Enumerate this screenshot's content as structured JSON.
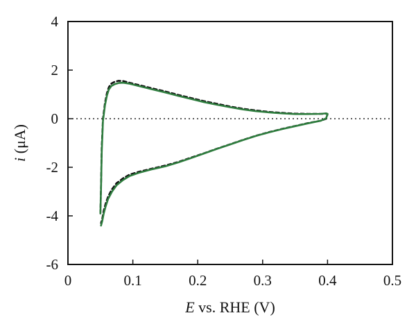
{
  "chart_data": {
    "type": "line",
    "title": "",
    "xlabel": {
      "italic": "E",
      "rest": " vs. RHE (V)"
    },
    "ylabel": {
      "italic": "i",
      "rest": " (μA)"
    },
    "xlim": [
      0,
      0.5
    ],
    "ylim": [
      -6,
      4
    ],
    "xticks": [
      0,
      0.1,
      0.2,
      0.3,
      0.4,
      0.5
    ],
    "xtick_labels": [
      "0",
      "0.1",
      "0.2",
      "0.3",
      "0.4",
      "0.5"
    ],
    "yticks": [
      -6,
      -4,
      -2,
      0,
      2,
      4
    ],
    "ytick_labels": [
      "-6",
      "-4",
      "-2",
      "0",
      "2",
      "4"
    ],
    "grid": false,
    "reference_line": {
      "y": 0,
      "style": "dotted"
    },
    "series": [
      {
        "style": "dashed",
        "color": "#111111",
        "x": [
          0.05,
          0.051,
          0.052,
          0.054,
          0.057,
          0.06,
          0.063,
          0.067,
          0.072,
          0.078,
          0.085,
          0.095,
          0.11,
          0.13,
          0.15,
          0.17,
          0.19,
          0.21,
          0.23,
          0.25,
          0.27,
          0.29,
          0.31,
          0.33,
          0.35,
          0.37,
          0.39,
          0.398,
          0.4,
          0.398,
          0.39,
          0.37,
          0.35,
          0.33,
          0.31,
          0.29,
          0.27,
          0.25,
          0.23,
          0.21,
          0.19,
          0.17,
          0.15,
          0.13,
          0.11,
          0.095,
          0.085,
          0.075,
          0.068,
          0.062,
          0.058,
          0.055,
          0.053,
          0.051
        ],
        "y": [
          -3.9,
          -2.8,
          -1.2,
          0.0,
          0.65,
          1.05,
          1.3,
          1.45,
          1.52,
          1.56,
          1.55,
          1.48,
          1.38,
          1.25,
          1.12,
          0.98,
          0.85,
          0.72,
          0.61,
          0.5,
          0.41,
          0.34,
          0.28,
          0.24,
          0.21,
          0.2,
          0.2,
          0.21,
          0.18,
          0.0,
          -0.08,
          -0.18,
          -0.3,
          -0.42,
          -0.55,
          -0.7,
          -0.87,
          -1.05,
          -1.23,
          -1.42,
          -1.6,
          -1.78,
          -1.93,
          -2.05,
          -2.18,
          -2.3,
          -2.45,
          -2.65,
          -2.9,
          -3.2,
          -3.5,
          -3.8,
          -4.1,
          -4.3
        ]
      },
      {
        "style": "solid",
        "color": "#2e7d3e",
        "x": [
          0.05,
          0.051,
          0.052,
          0.054,
          0.057,
          0.06,
          0.063,
          0.067,
          0.072,
          0.078,
          0.085,
          0.095,
          0.11,
          0.13,
          0.15,
          0.17,
          0.19,
          0.21,
          0.23,
          0.25,
          0.27,
          0.29,
          0.31,
          0.33,
          0.35,
          0.37,
          0.39,
          0.398,
          0.4,
          0.398,
          0.39,
          0.37,
          0.35,
          0.33,
          0.31,
          0.29,
          0.27,
          0.25,
          0.23,
          0.21,
          0.19,
          0.17,
          0.15,
          0.13,
          0.11,
          0.095,
          0.085,
          0.075,
          0.068,
          0.062,
          0.058,
          0.055,
          0.053,
          0.051
        ],
        "y": [
          -3.9,
          -2.9,
          -1.4,
          -0.1,
          0.55,
          0.95,
          1.2,
          1.35,
          1.42,
          1.47,
          1.48,
          1.44,
          1.34,
          1.21,
          1.08,
          0.94,
          0.81,
          0.68,
          0.57,
          0.47,
          0.38,
          0.31,
          0.26,
          0.22,
          0.19,
          0.19,
          0.2,
          0.22,
          0.2,
          0.02,
          -0.08,
          -0.19,
          -0.31,
          -0.43,
          -0.56,
          -0.71,
          -0.88,
          -1.06,
          -1.24,
          -1.43,
          -1.62,
          -1.8,
          -1.96,
          -2.08,
          -2.22,
          -2.36,
          -2.52,
          -2.74,
          -3.0,
          -3.3,
          -3.62,
          -3.92,
          -4.2,
          -4.4
        ]
      }
    ]
  }
}
